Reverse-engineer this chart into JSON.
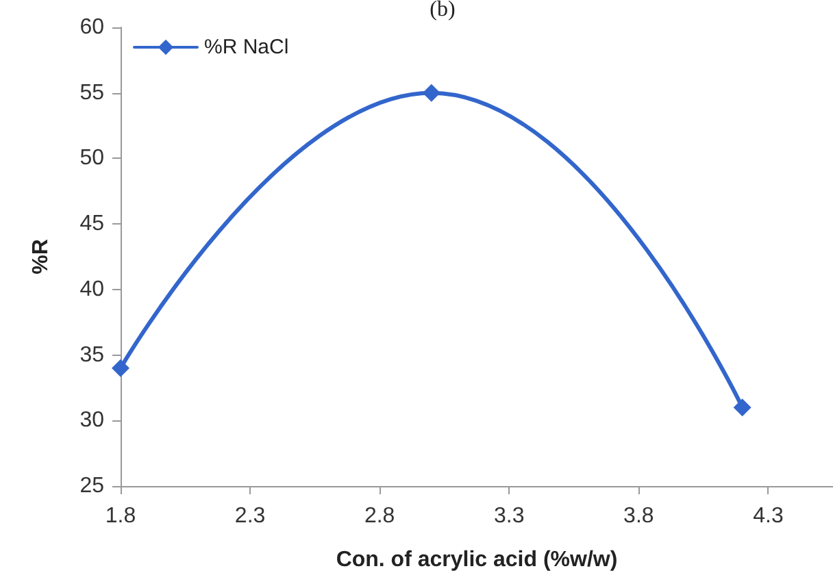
{
  "chart_data": {
    "type": "line",
    "title": "(b)",
    "xlabel": "Con. of acrylic acid (%w/w)",
    "ylabel": "%R",
    "x": [
      1.8,
      3.0,
      4.2
    ],
    "series": [
      {
        "name": "%R NaCl",
        "color": "#3366cc",
        "values": [
          34,
          55,
          31
        ]
      }
    ],
    "xlim": [
      1.8,
      4.55
    ],
    "xticks": [
      1.8,
      2.3,
      2.8,
      3.3,
      3.8,
      4.3
    ],
    "ylim": [
      25,
      60
    ],
    "yticks": [
      25,
      30,
      35,
      40,
      45,
      50,
      55,
      60
    ],
    "grid": false,
    "legend": "top left",
    "marker": "diamond",
    "line_style": "solid"
  }
}
